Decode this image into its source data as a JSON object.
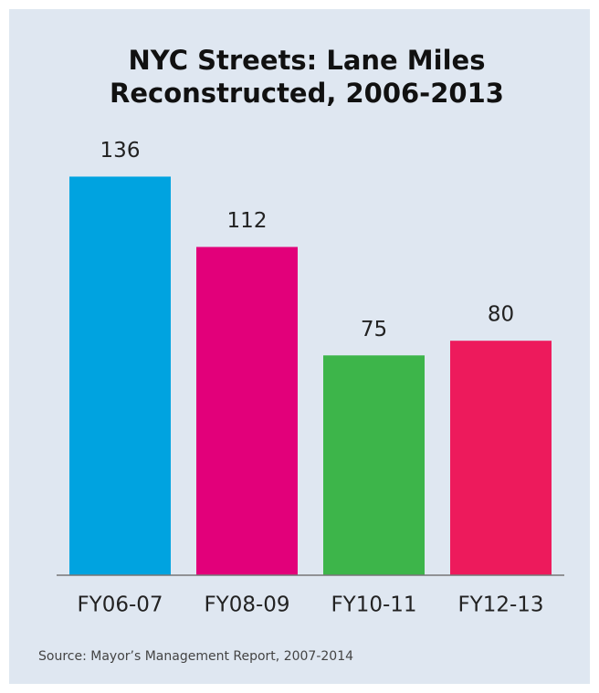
{
  "chart_data": {
    "type": "bar",
    "title": [
      "NYC Streets: Lane Miles",
      "Reconstructed, 2006-2013"
    ],
    "categories": [
      "FY06-07",
      "FY08-09",
      "FY10-11",
      "FY12-13"
    ],
    "values": [
      136,
      112,
      75,
      80
    ],
    "colors": [
      "#00a3e0",
      "#e2007a",
      "#3db54a",
      "#ed1a5c"
    ],
    "source": "Source: Mayor’s Management Report, 2007-2014"
  }
}
